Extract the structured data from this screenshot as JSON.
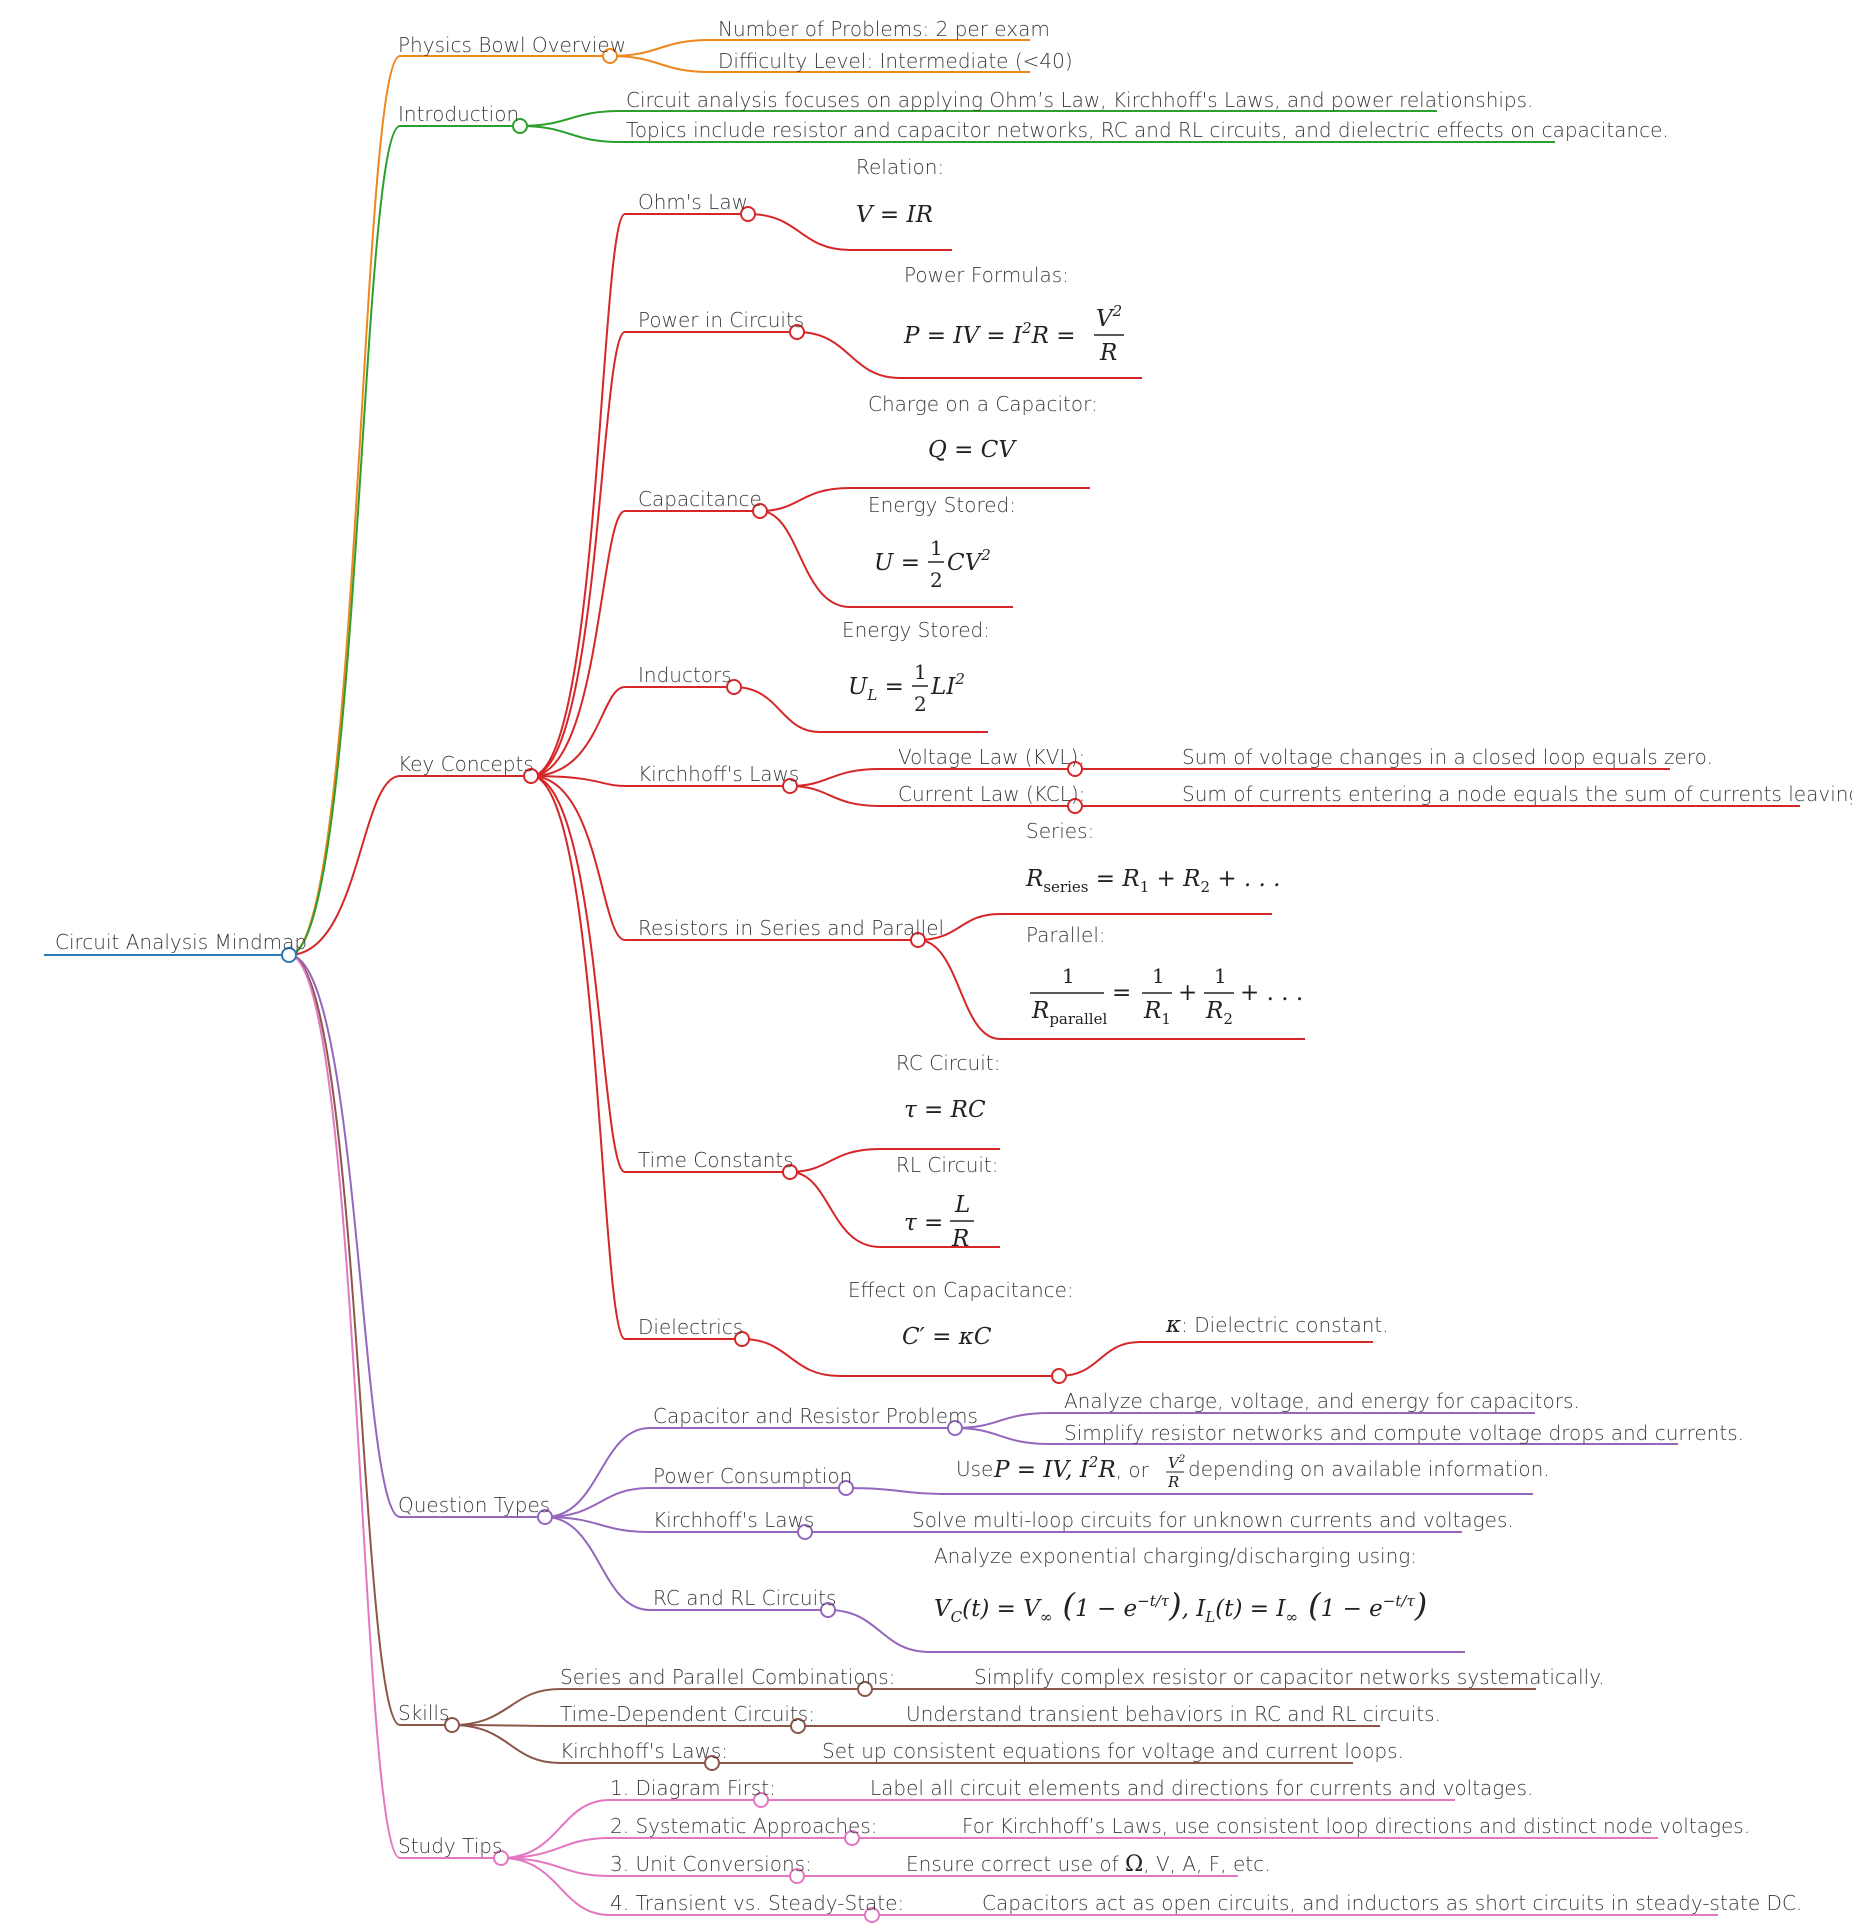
{
  "colors": {
    "root": "#2a7ab8",
    "overview": "#f0861e",
    "introduction": "#2ca02c",
    "key_concepts": "#d62728",
    "question_types": "#9467bd",
    "skills": "#8c564b",
    "study_tips": "#e377c2"
  },
  "root": {
    "label": "Circuit Analysis Mindmap"
  },
  "overview": {
    "label": "Physics Bowl Overview",
    "items": [
      "Number of Problems: 2 per exam",
      "Difficulty Level: Intermediate (<40)"
    ]
  },
  "introduction": {
    "label": "Introduction",
    "items": [
      "Circuit analysis focuses on applying Ohm’s Law, Kirchhoff's Laws, and power relationships.",
      "Topics include resistor and capacitor networks, RC and RL circuits, and dielectric effects on capacitance."
    ]
  },
  "key_concepts": {
    "label": "Key Concepts",
    "ohm": {
      "label": "Ohm's Law",
      "caption": "Relation:",
      "formula": "V = IR"
    },
    "power": {
      "label": "Power in Circuits",
      "caption": "Power Formulas:",
      "formula": "P = IV = I²R = V²/R"
    },
    "capacitance": {
      "label": "Capacitance",
      "charge_caption": "Charge on a Capacitor:",
      "charge_formula": "Q = CV",
      "energy_caption": "Energy Stored:",
      "energy_formula": "U = ½CV²"
    },
    "inductors": {
      "label": "Inductors",
      "caption": "Energy Stored:",
      "formula": "U_L = ½LI²"
    },
    "kirchhoff": {
      "label": "Kirchhoff's Laws",
      "kvl_label": "Voltage Law (KVL):",
      "kvl_text": "Sum of voltage changes in a closed loop equals zero.",
      "kcl_label": "Current Law (KCL):",
      "kcl_text": "Sum of currents entering a node equals the sum of currents leaving."
    },
    "resistors": {
      "label": "Resistors in Series and Parallel",
      "series_caption": "Series:",
      "series_formula": "R_series = R₁ + R₂ + …",
      "parallel_caption": "Parallel:",
      "parallel_formula": "1/R_parallel = 1/R₁ + 1/R₂ + …"
    },
    "time_constants": {
      "label": "Time Constants",
      "rc_caption": "RC Circuit:",
      "rc_formula": "τ = RC",
      "rl_caption": "RL Circuit:",
      "rl_formula": "τ = L/R"
    },
    "dielectrics": {
      "label": "Dielectrics",
      "caption": "Effect on Capacitance:",
      "formula": "C′ = κC",
      "kappa_symbol": "κ",
      "kappa_text": ": Dielectric constant."
    }
  },
  "question_types": {
    "label": "Question Types",
    "cap_res": {
      "label": "Capacitor and Resistor Problems",
      "items": [
        "Analyze charge, voltage, and energy for capacitors.",
        "Simplify resistor networks and compute voltage drops and currents."
      ]
    },
    "power": {
      "label": "Power Consumption",
      "text_pre": "Use ",
      "text_post": " depending on available information.",
      "formula": "P = IV, I²R, or V²/R"
    },
    "kirchhoff": {
      "label": "Kirchhoff's Laws",
      "text": "Solve multi-loop circuits for unknown currents and voltages."
    },
    "rc_rl": {
      "label": "RC and RL Circuits",
      "caption": "Analyze exponential charging/discharging using:",
      "formula": "V_C(t) = V∞(1 − e^(−t/τ)), I_L(t) = I∞(1 − e^(−t/τ))"
    }
  },
  "skills": {
    "label": "Skills",
    "items": [
      {
        "label": "Series and Parallel Combinations:",
        "text": "Simplify complex resistor or capacitor networks systematically."
      },
      {
        "label": "Time-Dependent Circuits:",
        "text": "Understand transient behaviors in RC and RL circuits."
      },
      {
        "label": "Kirchhoff's Laws:",
        "text": "Set up consistent equations for voltage and current loops."
      }
    ]
  },
  "study_tips": {
    "label": "Study Tips",
    "items": [
      {
        "label": "1. Diagram First:",
        "text": "Label all circuit elements and directions for currents and voltages."
      },
      {
        "label": "2. Systematic Approaches:",
        "text": "For Kirchhoff’s Laws, use consistent loop directions and distinct node voltages."
      },
      {
        "label": "3. Unit Conversions:",
        "text_pre": "Ensure correct use of ",
        "omega": "Ω",
        "text_post": ", V, A, F, etc."
      },
      {
        "label": "4. Transient vs. Steady-State:",
        "text": "Capacitors act as open circuits, and inductors as short circuits in steady-state DC."
      }
    ]
  }
}
